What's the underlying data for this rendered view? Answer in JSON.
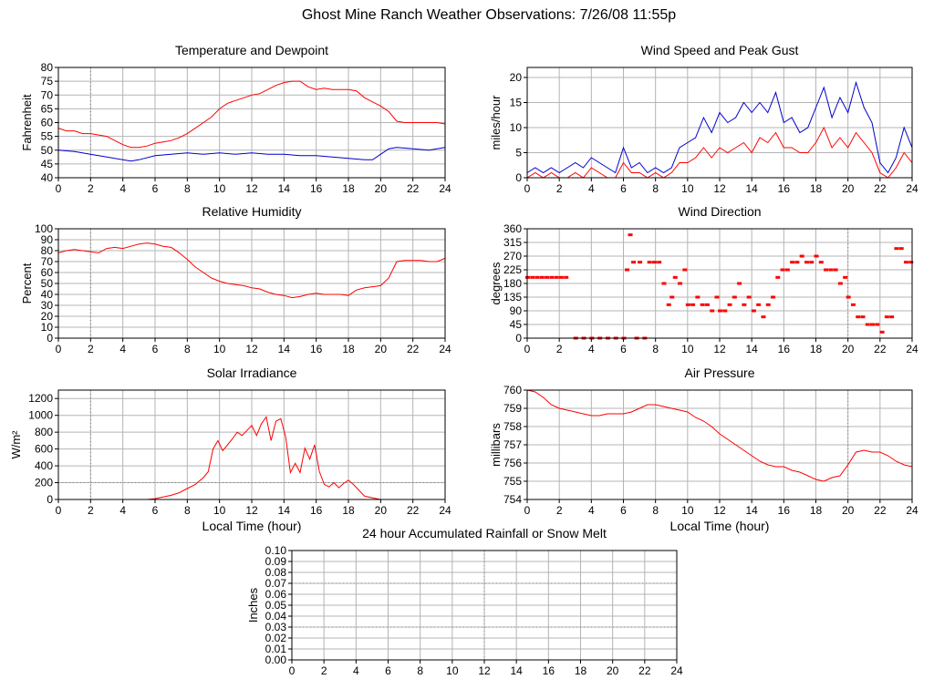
{
  "title": "Ghost Mine Ranch Weather Observations: 7/26/08 11:55p",
  "colors": {
    "red": "#ff0000",
    "blue": "#0000cc",
    "grid": "#b4b4b4",
    "dot": "#808080"
  },
  "chart_data": [
    {
      "id": "temp",
      "type": "line",
      "title": "Temperature and Dewpoint",
      "xlabel": "",
      "ylabel": "Fahrenheit",
      "xlim": [
        0,
        24
      ],
      "ylim": [
        40,
        80
      ],
      "xticks": [
        0,
        2,
        4,
        6,
        8,
        10,
        12,
        14,
        16,
        18,
        20,
        22,
        24
      ],
      "yticks": [
        40,
        45,
        50,
        55,
        60,
        65,
        70,
        75,
        80
      ],
      "series": [
        {
          "color": "#ff0000",
          "x": [
            0,
            0.5,
            1,
            1.5,
            2,
            2.5,
            3,
            3.5,
            4,
            4.5,
            5,
            5.5,
            6,
            6.5,
            7,
            7.5,
            8,
            8.5,
            9,
            9.5,
            10,
            10.5,
            11,
            11.5,
            12,
            12.5,
            13,
            13.5,
            14,
            14.5,
            15,
            15.5,
            16,
            16.5,
            17,
            17.5,
            18,
            18.5,
            19,
            19.5,
            20,
            20.5,
            21,
            21.5,
            22,
            22.5,
            23,
            23.5,
            24
          ],
          "y": [
            58,
            57,
            57,
            56,
            56,
            55.5,
            55,
            53.5,
            52,
            51,
            51,
            51.5,
            52.5,
            53,
            53.5,
            54.5,
            56,
            58,
            60,
            62,
            65,
            67,
            68,
            69,
            70,
            70.5,
            72,
            73.5,
            74.5,
            75,
            75,
            73,
            72,
            72.5,
            72,
            72,
            72,
            71.5,
            69,
            67.5,
            66,
            64,
            60.5,
            60,
            60,
            60,
            60,
            60,
            59.5
          ]
        },
        {
          "color": "#0000cc",
          "x": [
            0,
            1,
            2,
            3,
            4,
            4.5,
            5,
            6,
            7,
            8,
            9,
            10,
            11,
            12,
            13,
            14,
            15,
            16,
            17,
            18,
            19,
            19.5,
            20,
            20.5,
            21,
            22,
            23,
            24
          ],
          "y": [
            50,
            49.5,
            48.5,
            47.5,
            46.5,
            46,
            46.5,
            48,
            48.5,
            49,
            48.5,
            49,
            48.5,
            49,
            48.5,
            48.5,
            48,
            48,
            47.5,
            47,
            46.5,
            46.5,
            48.5,
            50.5,
            51,
            50.5,
            50,
            51
          ]
        }
      ]
    },
    {
      "id": "wind",
      "type": "line",
      "title": "Wind Speed and Peak Gust",
      "xlabel": "",
      "ylabel": "miles/hour",
      "xlim": [
        0,
        24
      ],
      "ylim": [
        0,
        22
      ],
      "xticks": [
        0,
        2,
        4,
        6,
        8,
        10,
        12,
        14,
        16,
        18,
        20,
        22,
        24
      ],
      "yticks": [
        0,
        5,
        10,
        15,
        20
      ],
      "series": [
        {
          "color": "#0000cc",
          "x": [
            0,
            0.5,
            1,
            1.5,
            2,
            2.5,
            3,
            3.5,
            4,
            4.5,
            5,
            5.5,
            6,
            6.5,
            7,
            7.5,
            8,
            8.5,
            9,
            9.5,
            10,
            10.5,
            11,
            11.5,
            12,
            12.5,
            13,
            13.5,
            14,
            14.5,
            15,
            15.5,
            16,
            16.5,
            17,
            17.5,
            18,
            18.5,
            19,
            19.5,
            20,
            20.5,
            21,
            21.5,
            22,
            22.5,
            23,
            23.5,
            24
          ],
          "y": [
            1,
            2,
            1,
            2,
            1,
            2,
            3,
            2,
            4,
            3,
            2,
            1,
            6,
            2,
            3,
            1,
            2,
            1,
            2,
            6,
            7,
            8,
            12,
            9,
            13,
            11,
            12,
            15,
            13,
            15,
            13,
            17,
            11,
            12,
            9,
            10,
            14,
            18,
            12,
            16,
            13,
            19,
            14,
            11,
            3,
            1,
            4,
            10,
            6
          ]
        },
        {
          "color": "#ff0000",
          "x": [
            0,
            0.5,
            1,
            1.5,
            2,
            2.5,
            3,
            3.5,
            4,
            4.5,
            5,
            5.5,
            6,
            6.5,
            7,
            7.5,
            8,
            8.5,
            9,
            9.5,
            10,
            10.5,
            11,
            11.5,
            12,
            12.5,
            13,
            13.5,
            14,
            14.5,
            15,
            15.5,
            16,
            16.5,
            17,
            17.5,
            18,
            18.5,
            19,
            19.5,
            20,
            20.5,
            21,
            21.5,
            22,
            22.5,
            23,
            23.5,
            24
          ],
          "y": [
            0,
            1,
            0,
            1,
            0,
            0,
            1,
            0,
            2,
            1,
            0,
            0,
            3,
            1,
            1,
            0,
            1,
            0,
            1,
            3,
            3,
            4,
            6,
            4,
            6,
            5,
            6,
            7,
            5,
            8,
            7,
            9,
            6,
            6,
            5,
            5,
            7,
            10,
            6,
            8,
            6,
            9,
            7,
            5,
            1,
            0,
            2,
            5,
            3
          ]
        }
      ]
    },
    {
      "id": "rh",
      "type": "line",
      "title": "Relative Humidity",
      "xlabel": "",
      "ylabel": "Percent",
      "xlim": [
        0,
        24
      ],
      "ylim": [
        0,
        100
      ],
      "xticks": [
        0,
        2,
        4,
        6,
        8,
        10,
        12,
        14,
        16,
        18,
        20,
        22,
        24
      ],
      "yticks": [
        0,
        10,
        20,
        30,
        40,
        50,
        60,
        70,
        80,
        90,
        100
      ],
      "series": [
        {
          "color": "#ff0000",
          "x": [
            0,
            0.5,
            1,
            1.5,
            2,
            2.5,
            3,
            3.5,
            4,
            4.5,
            5,
            5.5,
            6,
            6.5,
            7,
            7.5,
            8,
            8.5,
            9,
            9.5,
            10,
            10.5,
            11,
            11.5,
            12,
            12.5,
            13,
            13.5,
            14,
            14.5,
            15,
            15.5,
            16,
            16.5,
            17,
            17.5,
            18,
            18.5,
            19,
            19.5,
            20,
            20.5,
            21,
            21.5,
            22,
            22.5,
            23,
            23.5,
            24
          ],
          "y": [
            78,
            80,
            81,
            80,
            79,
            78,
            82,
            83,
            82,
            84,
            86,
            87,
            86,
            84,
            83,
            78,
            72,
            65,
            60,
            55,
            52,
            50,
            49,
            48,
            46,
            45,
            42,
            40,
            39,
            37,
            38,
            40,
            41,
            40,
            40,
            40,
            39,
            44,
            46,
            47,
            48,
            55,
            70,
            71,
            71,
            71,
            70,
            70,
            73
          ]
        }
      ]
    },
    {
      "id": "wdir",
      "type": "scatter",
      "title": "Wind Direction",
      "xlabel": "",
      "ylabel": "degrees",
      "xlim": [
        0,
        24
      ],
      "ylim": [
        0,
        360
      ],
      "xticks": [
        0,
        2,
        4,
        6,
        8,
        10,
        12,
        14,
        16,
        18,
        20,
        22,
        24
      ],
      "yticks": [
        0,
        45,
        90,
        135,
        180,
        225,
        270,
        315,
        360
      ],
      "series": [
        {
          "color": "#ff0000",
          "x": [
            0,
            0.3,
            0.6,
            0.9,
            1.2,
            1.5,
            1.8,
            2.1,
            2.4,
            3,
            3.5,
            4,
            4.5,
            5,
            5.5,
            6,
            6.2,
            6.4,
            6.6,
            6.8,
            7,
            7.3,
            7.6,
            7.9,
            8.2,
            8.5,
            8.8,
            9,
            9.2,
            9.5,
            9.8,
            10,
            10.3,
            10.6,
            10.9,
            11.2,
            11.5,
            11.8,
            12,
            12.3,
            12.6,
            12.9,
            13.2,
            13.5,
            13.8,
            14.1,
            14.4,
            14.7,
            15,
            15.3,
            15.6,
            15.9,
            16.2,
            16.5,
            16.8,
            17.1,
            17.4,
            17.7,
            18,
            18.3,
            18.6,
            18.9,
            19.2,
            19.5,
            19.8,
            20,
            20.3,
            20.6,
            20.9,
            21.2,
            21.5,
            21.8,
            22.1,
            22.4,
            22.7,
            23,
            23.3,
            23.6,
            23.9
          ],
          "y": [
            200,
            200,
            200,
            200,
            200,
            200,
            200,
            200,
            200,
            0,
            0,
            0,
            0,
            0,
            0,
            0,
            225,
            340,
            250,
            0,
            250,
            0,
            250,
            250,
            250,
            180,
            110,
            135,
            200,
            180,
            225,
            110,
            110,
            135,
            110,
            110,
            90,
            135,
            90,
            90,
            110,
            135,
            180,
            110,
            135,
            90,
            110,
            70,
            110,
            135,
            200,
            225,
            225,
            250,
            250,
            270,
            250,
            250,
            270,
            250,
            225,
            225,
            225,
            180,
            200,
            135,
            110,
            70,
            70,
            45,
            45,
            45,
            20,
            70,
            70,
            295,
            295,
            250,
            250
          ]
        }
      ]
    },
    {
      "id": "solar",
      "type": "line",
      "title": "Solar Irradiance",
      "xlabel": "Local Time (hour)",
      "ylabel": "W/m²",
      "xlim": [
        0,
        24
      ],
      "ylim": [
        0,
        1300
      ],
      "xticks": [
        0,
        2,
        4,
        6,
        8,
        10,
        12,
        14,
        16,
        18,
        20,
        22,
        24
      ],
      "yticks": [
        0,
        200,
        400,
        600,
        800,
        1000,
        1200
      ],
      "series": [
        {
          "color": "#ff0000",
          "x": [
            0,
            5.5,
            6,
            6.5,
            7,
            7.5,
            8,
            8.5,
            9,
            9.3,
            9.6,
            9.9,
            10.2,
            10.5,
            10.8,
            11.1,
            11.4,
            11.7,
            12,
            12.3,
            12.6,
            12.9,
            13.2,
            13.5,
            13.8,
            14.1,
            14.4,
            14.7,
            15,
            15.3,
            15.6,
            15.9,
            16.2,
            16.5,
            16.8,
            17.1,
            17.4,
            17.7,
            18,
            18.3,
            18.6,
            19,
            19.5,
            20,
            24
          ],
          "y": [
            0,
            0,
            10,
            30,
            50,
            80,
            130,
            180,
            260,
            330,
            600,
            700,
            580,
            650,
            720,
            800,
            760,
            820,
            880,
            760,
            900,
            980,
            700,
            930,
            960,
            750,
            320,
            430,
            320,
            610,
            480,
            650,
            330,
            180,
            150,
            200,
            140,
            190,
            230,
            180,
            120,
            40,
            20,
            0,
            0
          ]
        }
      ]
    },
    {
      "id": "pressure",
      "type": "line",
      "title": "Air Pressure",
      "xlabel": "Local Time (hour)",
      "ylabel": "millibars",
      "xlim": [
        0,
        24
      ],
      "ylim": [
        754,
        760
      ],
      "xticks": [
        0,
        2,
        4,
        6,
        8,
        10,
        12,
        14,
        16,
        18,
        20,
        22,
        24
      ],
      "yticks": [
        754,
        755,
        756,
        757,
        758,
        759,
        760
      ],
      "series": [
        {
          "color": "#ff0000",
          "x": [
            0,
            0.5,
            1,
            1.5,
            2,
            2.5,
            3,
            3.5,
            4,
            4.5,
            5,
            5.5,
            6,
            6.5,
            7,
            7.5,
            8,
            8.5,
            9,
            9.5,
            10,
            10.5,
            11,
            11.5,
            12,
            12.5,
            13,
            13.5,
            14,
            14.5,
            15,
            15.5,
            16,
            16.5,
            17,
            17.5,
            18,
            18.5,
            19,
            19.5,
            20,
            20.5,
            21,
            21.5,
            22,
            22.5,
            23,
            23.5,
            24
          ],
          "y": [
            760,
            759.9,
            759.6,
            759.2,
            759,
            758.9,
            758.8,
            758.7,
            758.6,
            758.6,
            758.7,
            758.7,
            758.7,
            758.8,
            759,
            759.2,
            759.2,
            759.1,
            759,
            758.9,
            758.8,
            758.5,
            758.3,
            758,
            757.6,
            757.3,
            757,
            756.7,
            756.4,
            756.1,
            755.9,
            755.8,
            755.8,
            755.6,
            755.5,
            755.3,
            755.1,
            755,
            755.2,
            755.3,
            755.9,
            756.6,
            756.7,
            756.6,
            756.6,
            756.4,
            756.1,
            755.9,
            755.8
          ]
        }
      ]
    },
    {
      "id": "rain",
      "type": "line",
      "title": "24 hour Accumulated Rainfall or Snow Melt",
      "xlabel": "",
      "ylabel": "Inches",
      "xlim": [
        0,
        24
      ],
      "ylim": [
        0,
        0.1
      ],
      "xticks": [
        0,
        2,
        4,
        6,
        8,
        10,
        12,
        14,
        16,
        18,
        20,
        22,
        24
      ],
      "yticks": [
        "0.00",
        "0.01",
        "0.02",
        "0.03",
        "0.04",
        "0.05",
        "0.06",
        "0.07",
        "0.08",
        "0.09",
        "0.10"
      ],
      "series": [
        {
          "color": "#ff0000",
          "x": [
            0,
            24
          ],
          "y": [
            0,
            0
          ]
        }
      ]
    }
  ]
}
